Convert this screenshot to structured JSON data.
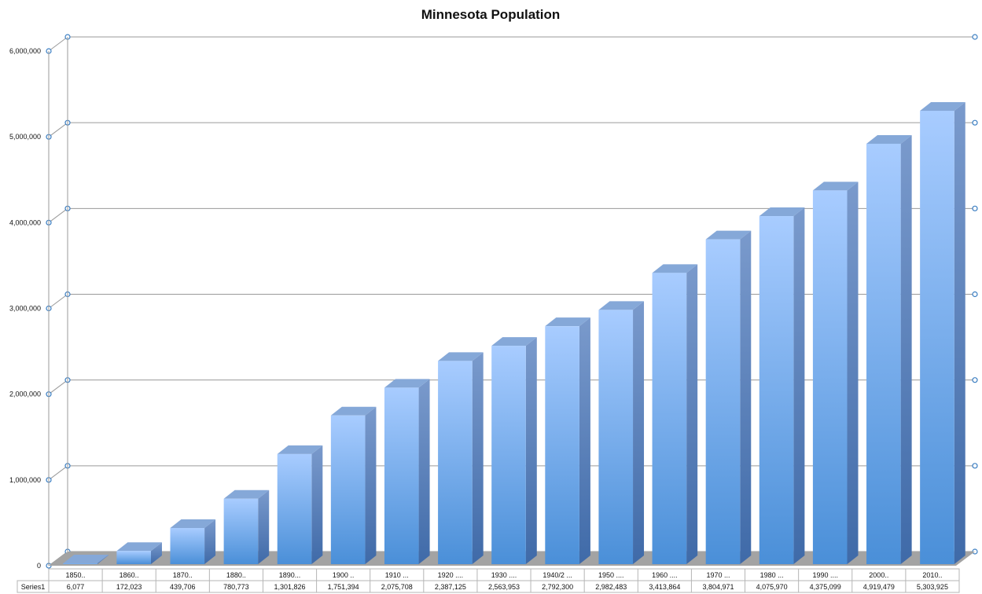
{
  "chart_data": {
    "type": "bar",
    "title": "Minnesota Population",
    "categories": [
      "1850..",
      "1860..",
      "1870..",
      "1880..",
      "1890...",
      "1900 ..",
      "1910 ...",
      "1920 ....",
      "1930 ....",
      "1940/2 ...",
      "1950 ....",
      "1960 ....",
      "1970 ...",
      "1980 ...",
      "1990 ....",
      "2000..",
      "2010.."
    ],
    "series": [
      {
        "name": "Series1",
        "values": [
          6077,
          172023,
          439706,
          780773,
          1301826,
          1751394,
          2075708,
          2387125,
          2563953,
          2792300,
          2982483,
          3413864,
          3804971,
          4075970,
          4375099,
          4919479,
          5303925
        ],
        "value_labels": [
          "6,077",
          "172,023",
          "439,706",
          "780,773",
          "1,301,826",
          "1,751,394",
          "2,075,708",
          "2,387,125",
          "2,563,953",
          "2,792,300",
          "2,982,483",
          "3,413,864",
          "3,804,971",
          "4,075,970",
          "4,375,099",
          "4,919,479",
          "5,303,925"
        ]
      }
    ],
    "y_ticks": [
      0,
      1000000,
      2000000,
      3000000,
      4000000,
      5000000,
      6000000
    ],
    "y_tick_labels": [
      "0",
      "1,000,000",
      "2,000,000",
      "3,000,000",
      "4,000,000",
      "5,000,000",
      "6,000,000"
    ],
    "ylim": [
      0,
      6000000
    ],
    "xlabel": "",
    "ylabel": "",
    "grid": true,
    "style": "3d-column",
    "data_table": true,
    "colors": {
      "bar_top": "#a8ccff",
      "bar_bottom": "#4a8fd8",
      "bar_side": "#5d82b8",
      "bar_cap": "#85a8d8",
      "floor": "#a3a3a3",
      "grid": "#9a9a9a",
      "marker": "#3b7ec2"
    }
  }
}
